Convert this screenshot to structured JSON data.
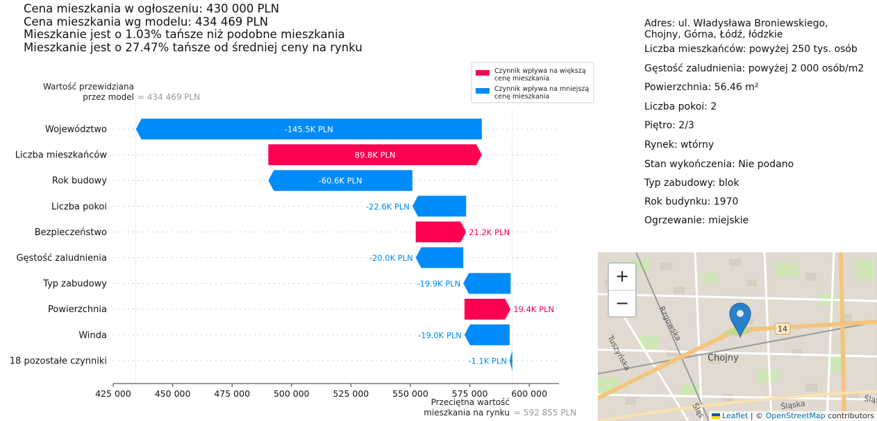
{
  "header": {
    "lines": [
      "Cena mieszkania w ogłoszeniu: 430 000 PLN",
      "Cena mieszkania wg modelu: 434 469 PLN",
      "Mieszkanie jest o 1.03% tańsze niż podobne mieszkania",
      "Mieszkanie jest o 27.47% tańsze od średniej ceny na rynku"
    ]
  },
  "info": {
    "address_lines": [
      "Adres: ul. Władysława Broniewskiego,",
      "Chojny, Górna, Łódź, łódzkie"
    ],
    "rows": [
      "Liczba mieszkańców: powyżej 250 tys. osób",
      "Gęstość zaludnienia: powyżej 2 000 osób/m2",
      "Powierzchnia: 56.46 m²",
      "Liczba pokoi: 2",
      "Piętro: 2/3",
      "Rynek: wtórny",
      "Stan wykończenia: Nie podano",
      "Typ zabudowy: blok",
      "Rok budynku: 1970",
      "Ogrzewanie: miejskie"
    ]
  },
  "chart_data": {
    "type": "waterfall",
    "features": [
      "Województwo",
      "Liczba mieszkańców",
      "Rok budowy",
      "Liczba pokoi",
      "Bezpieczeństwo",
      "Gęstość zaludnienia",
      "Typ zabudowy",
      "Powierzchnia",
      "Winda",
      "18 pozostałe czynniki"
    ],
    "values": [
      -145500,
      89800,
      -60600,
      -22600,
      21200,
      -20000,
      -19900,
      19400,
      -19000,
      -1100
    ],
    "value_labels": [
      "-145.5K PLN",
      "89.8K PLN",
      "-60.6K PLN",
      "-22.6K PLN",
      "21.2K PLN",
      "-20.0K PLN",
      "-19.9K PLN",
      "19.4K PLN",
      "-19.0K PLN",
      "-1.1K PLN"
    ],
    "base_value": 592855,
    "predicted_value": 434469,
    "xlim": [
      425000,
      612500
    ],
    "xticks": [
      425000,
      450000,
      475000,
      500000,
      525000,
      550000,
      575000,
      600000
    ],
    "xtick_labels": [
      "425 000",
      "450 000",
      "475 000",
      "500 000",
      "525 000",
      "550 000",
      "575 000",
      "600 000"
    ],
    "top_label_lines": [
      "Wartość przewidziana",
      "przez model"
    ],
    "top_value": "= 434 469 PLN",
    "bottom_label_lines": [
      "Przeciętna wartość",
      "mieszkania na rynku"
    ],
    "bottom_value": "= 592 855 PLN",
    "legend": [
      "Czynnik wpływa na większą cenę mieszkania",
      "Czynnik wpływa na mniejszą cenę mieszkania"
    ],
    "legend_lines": [
      [
        "Czynnik wpływa na większą",
        "cenę mieszkania"
      ],
      [
        "Czynnik wpływa na mniejszą",
        "cenę mieszkania"
      ]
    ],
    "legend_position": "top-right",
    "colors": {
      "positive": "#ff0051",
      "negative": "#008bfb"
    },
    "grid": false
  },
  "map": {
    "zoom_in": "+",
    "zoom_out": "−",
    "labels": {
      "district": "Chojny",
      "road_number": "14",
      "street_rzgowska": "Rzgowska",
      "street_tuszynska": "Tuszyńska",
      "street_slaska": "Śląska",
      "street_slaska_2": "Śląs",
      "street_slaska_3": "Śląs"
    },
    "attribution": {
      "leaflet": "Leaflet",
      "separator": " | © ",
      "osm": "OpenStreetMap",
      "contributors": " contributors"
    }
  }
}
